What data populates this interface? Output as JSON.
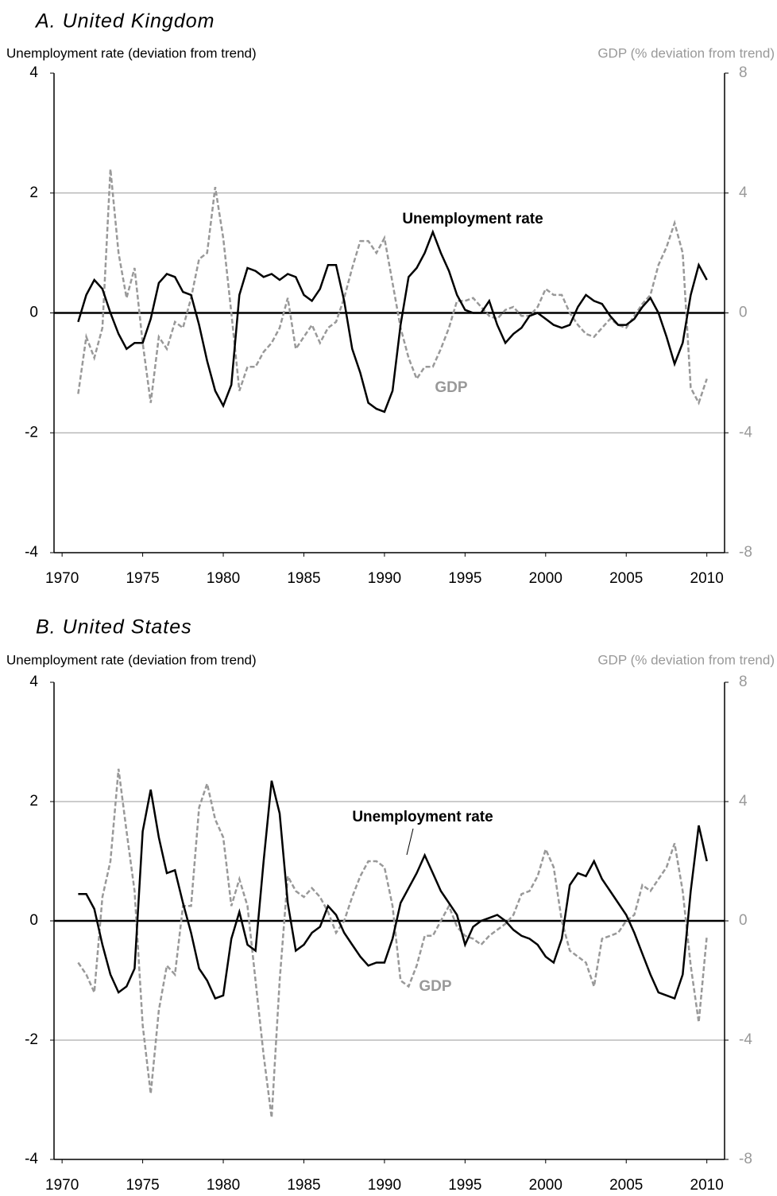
{
  "chart_data": [
    {
      "type": "line",
      "title": "A.  United Kingdom",
      "ylabel": "Unemployment rate (deviation from trend)",
      "y2label": "GDP (% deviation from trend)",
      "x": [
        1971,
        1971.5,
        1972,
        1972.5,
        1973,
        1973.5,
        1974,
        1974.5,
        1975,
        1975.5,
        1976,
        1976.5,
        1977,
        1977.5,
        1978,
        1978.5,
        1979,
        1979.5,
        1980,
        1980.5,
        1981,
        1981.5,
        1982,
        1982.5,
        1983,
        1983.5,
        1984,
        1984.5,
        1985,
        1985.5,
        1986,
        1986.5,
        1987,
        1987.5,
        1988,
        1988.5,
        1989,
        1989.5,
        1990,
        1990.5,
        1991,
        1991.5,
        1992,
        1992.5,
        1993,
        1993.5,
        1994,
        1994.5,
        1995,
        1995.5,
        1996,
        1996.5,
        1997,
        1997.5,
        1998,
        1998.5,
        1999,
        1999.5,
        2000,
        2000.5,
        2001,
        2001.5,
        2002,
        2002.5,
        2003,
        2003.5,
        2004,
        2004.5,
        2005,
        2005.5,
        2006,
        2006.5,
        2007,
        2007.5,
        2008,
        2008.5,
        2009,
        2009.5,
        2010
      ],
      "series": [
        {
          "name": "Unemployment rate",
          "color": "#000000",
          "dashed": false,
          "axis": "y",
          "values": [
            -0.15,
            0.3,
            0.55,
            0.4,
            0.0,
            -0.35,
            -0.6,
            -0.5,
            -0.5,
            -0.1,
            0.5,
            0.65,
            0.6,
            0.35,
            0.3,
            -0.2,
            -0.8,
            -1.3,
            -1.55,
            -1.2,
            0.3,
            0.75,
            0.7,
            0.6,
            0.65,
            0.55,
            0.65,
            0.6,
            0.3,
            0.2,
            0.4,
            0.8,
            0.8,
            0.2,
            -0.6,
            -1.0,
            -1.5,
            -1.6,
            -1.65,
            -1.3,
            -0.2,
            0.6,
            0.75,
            1.0,
            1.35,
            1.0,
            0.7,
            0.3,
            0.05,
            0.0,
            0.0,
            0.2,
            -0.2,
            -0.5,
            -0.35,
            -0.25,
            -0.05,
            0.0,
            -0.1,
            -0.2,
            -0.25,
            -0.2,
            0.1,
            0.3,
            0.2,
            0.15,
            -0.05,
            -0.2,
            -0.2,
            -0.1,
            0.1,
            0.25,
            0.0,
            -0.4,
            -0.85,
            -0.5,
            0.3,
            0.8,
            0.55
          ]
        },
        {
          "name": "GDP",
          "color": "#999999",
          "dashed": true,
          "axis": "y2",
          "values": [
            -2.7,
            -0.8,
            -1.5,
            -0.5,
            4.8,
            2.0,
            0.5,
            1.5,
            -1.0,
            -3.0,
            -0.8,
            -1.2,
            -0.3,
            -0.5,
            0.5,
            1.8,
            2.0,
            4.2,
            2.5,
            0.0,
            -2.6,
            -1.8,
            -1.8,
            -1.3,
            -1.0,
            -0.5,
            0.5,
            -1.2,
            -0.8,
            -0.4,
            -1.0,
            -0.5,
            -0.3,
            0.5,
            1.5,
            2.4,
            2.4,
            2.0,
            2.5,
            1.0,
            -0.5,
            -1.5,
            -2.2,
            -1.8,
            -1.8,
            -1.2,
            -0.5,
            0.4,
            0.4,
            0.5,
            0.2,
            -0.1,
            -0.2,
            0.1,
            0.2,
            -0.1,
            -0.1,
            0.2,
            0.8,
            0.6,
            0.6,
            0.0,
            -0.4,
            -0.7,
            -0.8,
            -0.5,
            -0.2,
            -0.4,
            -0.5,
            -0.1,
            0.3,
            0.6,
            1.6,
            2.2,
            3.0,
            2.0,
            -2.5,
            -3.0,
            -2.2
          ]
        }
      ],
      "xlim": [
        1969.5,
        2011.1
      ],
      "xticks": [
        1970,
        1975,
        1980,
        1985,
        1990,
        1995,
        2000,
        2005,
        2010
      ],
      "ylim": [
        -4,
        4
      ],
      "yticks": [
        4,
        2,
        0,
        -2,
        -4
      ],
      "y2lim": [
        -8,
        8
      ],
      "y2ticks": [
        8,
        4,
        0,
        -4,
        -8
      ],
      "grid": true
    },
    {
      "type": "line",
      "title": "B.  United States",
      "ylabel": "Unemployment rate (deviation from trend)",
      "y2label": "GDP (% deviation from trend)",
      "x": [
        1971,
        1971.5,
        1972,
        1972.5,
        1973,
        1973.5,
        1974,
        1974.5,
        1975,
        1975.5,
        1976,
        1976.5,
        1977,
        1977.5,
        1978,
        1978.5,
        1979,
        1979.5,
        1980,
        1980.5,
        1981,
        1981.5,
        1982,
        1982.5,
        1983,
        1983.5,
        1984,
        1984.5,
        1985,
        1985.5,
        1986,
        1986.5,
        1987,
        1987.5,
        1988,
        1988.5,
        1989,
        1989.5,
        1990,
        1990.5,
        1991,
        1991.5,
        1992,
        1992.5,
        1993,
        1993.5,
        1994,
        1994.5,
        1995,
        1995.5,
        1996,
        1996.5,
        1997,
        1997.5,
        1998,
        1998.5,
        1999,
        1999.5,
        2000,
        2000.5,
        2001,
        2001.5,
        2002,
        2002.5,
        2003,
        2003.5,
        2004,
        2004.5,
        2005,
        2005.5,
        2006,
        2006.5,
        2007,
        2007.5,
        2008,
        2008.5,
        2009,
        2009.5,
        2010
      ],
      "series": [
        {
          "name": "Unemployment rate",
          "color": "#000000",
          "dashed": false,
          "axis": "y",
          "values": [
            0.45,
            0.45,
            0.2,
            -0.4,
            -0.9,
            -1.2,
            -1.1,
            -0.8,
            1.5,
            2.2,
            1.4,
            0.8,
            0.85,
            0.3,
            -0.2,
            -0.8,
            -1.0,
            -1.3,
            -1.25,
            -0.3,
            0.15,
            -0.4,
            -0.5,
            1.0,
            2.35,
            1.8,
            0.3,
            -0.5,
            -0.4,
            -0.2,
            -0.1,
            0.25,
            0.1,
            -0.2,
            -0.4,
            -0.6,
            -0.75,
            -0.7,
            -0.7,
            -0.3,
            0.3,
            0.55,
            0.8,
            1.1,
            0.8,
            0.5,
            0.3,
            0.1,
            -0.4,
            -0.1,
            0.0,
            0.05,
            0.1,
            0.0,
            -0.15,
            -0.25,
            -0.3,
            -0.4,
            -0.6,
            -0.7,
            -0.3,
            0.6,
            0.8,
            0.75,
            1.0,
            0.7,
            0.5,
            0.3,
            0.1,
            -0.2,
            -0.55,
            -0.9,
            -1.2,
            -1.25,
            -1.3,
            -0.9,
            0.5,
            1.6,
            1.0
          ]
        },
        {
          "name": "GDP",
          "color": "#999999",
          "dashed": true,
          "axis": "y2",
          "values": [
            -1.4,
            -1.8,
            -2.4,
            0.8,
            2.0,
            5.1,
            3.0,
            1.0,
            -3.5,
            -5.8,
            -3.0,
            -1.5,
            -1.8,
            0.5,
            0.5,
            3.8,
            4.6,
            3.4,
            2.8,
            0.5,
            1.4,
            0.5,
            -2.0,
            -4.5,
            -6.6,
            -2.0,
            1.5,
            1.0,
            0.8,
            1.1,
            0.8,
            0.3,
            -0.4,
            0.0,
            0.8,
            1.5,
            2.0,
            2.0,
            1.8,
            0.5,
            -2.0,
            -2.2,
            -1.5,
            -0.5,
            -0.5,
            0.0,
            0.5,
            -0.2,
            -0.5,
            -0.6,
            -0.8,
            -0.5,
            -0.3,
            -0.1,
            0.2,
            0.9,
            1.0,
            1.5,
            2.4,
            1.8,
            0.0,
            -1.0,
            -1.2,
            -1.4,
            -2.2,
            -0.6,
            -0.5,
            -0.4,
            0.0,
            0.2,
            1.2,
            1.0,
            1.4,
            1.8,
            2.6,
            1.0,
            -1.5,
            -3.4,
            -0.5
          ]
        }
      ],
      "xlim": [
        1969.5,
        2011.1
      ],
      "xticks": [
        1970,
        1975,
        1980,
        1985,
        1990,
        1995,
        2000,
        2005,
        2010
      ],
      "ylim": [
        -4,
        4
      ],
      "yticks": [
        4,
        2,
        0,
        -2,
        -4
      ],
      "y2lim": [
        -8,
        8
      ],
      "y2ticks": [
        8,
        4,
        0,
        -4,
        -8
      ],
      "grid": true
    }
  ]
}
